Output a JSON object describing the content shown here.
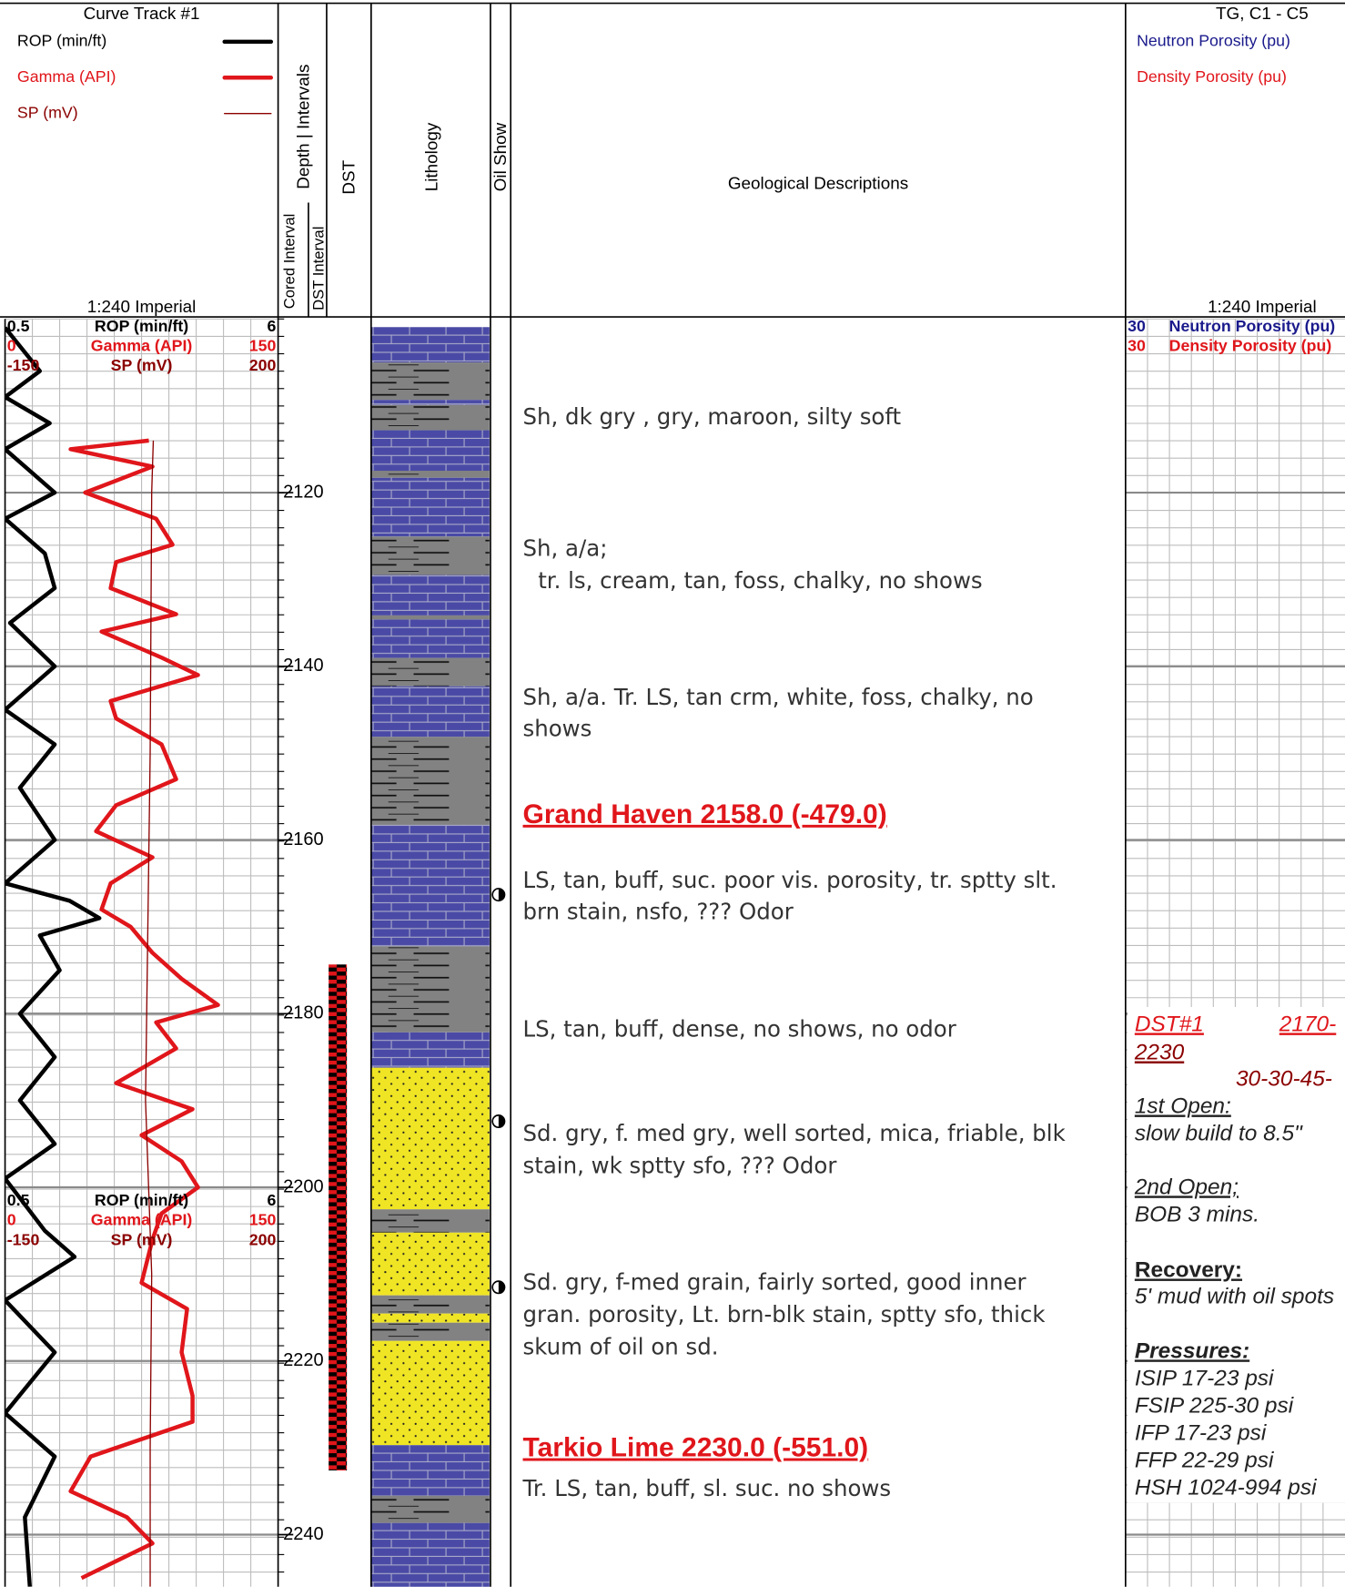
{
  "header": {
    "curve_track_title": "Curve Track #1",
    "scale_label": "1:240 Imperial",
    "columns": {
      "depth": "Depth | Intervals",
      "cored": "Cored Interval",
      "dst_interval": "DST Interval",
      "dst": "DST",
      "lithology": "Lithology",
      "oil_show": "Oil Show",
      "descriptions": "Geological Descriptions"
    }
  },
  "right_track": {
    "title": "TG, C1 - C5",
    "scale_label": "1:240 Imperial",
    "curves": [
      {
        "name": "Neutron Porosity (pu)",
        "color": "#1a1a8c",
        "min": 30
      },
      {
        "name": "Density Porosity (pu)",
        "color": "#e0161b",
        "min": 30
      }
    ]
  },
  "descriptions": [
    {
      "lines": [
        "Sh, dk gry , gry, maroon, silty soft"
      ]
    },
    {
      "lines": [
        "Sh, a/a;",
        "tr. ls, cream, tan, foss, chalky, no shows"
      ]
    },
    {
      "lines": [
        "Sh, a/a. Tr. LS, tan crm, white, foss, chalky, no",
        "shows"
      ]
    },
    {
      "lines": [
        "LS, tan, buff, suc. poor vis. porosity, tr. sptty slt.",
        "brn stain, nsfo, ??? Odor"
      ]
    },
    {
      "lines": [
        "LS, tan, buff, dense, no shows, no odor"
      ]
    },
    {
      "lines": [
        "Sd. gry, f. med gry, well sorted, mica, friable, blk",
        "stain, wk sptty sfo, ??? Odor"
      ]
    },
    {
      "lines": [
        "Sd. gry, f-med grain, fairly sorted, good inner",
        "gran. porosity, Lt. brn-blk stain, sptty sfo, thick",
        "skum of oil on sd."
      ]
    },
    {
      "lines": [
        "Tr. LS, tan, buff, sl.  suc. no shows"
      ]
    }
  ],
  "formation_tops": [
    "Grand Haven  2158.0 (-479.0)",
    "Tarkio Lime 2230.0 (-551.0)"
  ],
  "dst_report": [
    "DST#1",
    "2170-",
    "2230",
    "30-30-45-",
    "1st Open:",
    "slow build to 8.5\"",
    "2nd Open;",
    "BOB 3 mins.",
    "Recovery:",
    "5' mud with oil spots",
    "Pressures:",
    "ISIP 17-23 psi",
    "FSIP 225-30 psi",
    "IFP 17-23 psi",
    "FFP 22-29 psi",
    "HSH 1024-994 psi"
  ],
  "chart_data": {
    "type": "line",
    "ylim": [
      2100,
      2246
    ],
    "yticks": [
      2120,
      2140,
      2160,
      2180,
      2200,
      2220,
      2240
    ],
    "grid": true,
    "series": [
      {
        "name": "ROP (min/ft)",
        "color": "#000000",
        "xlim": [
          0.5,
          6
        ],
        "x": [
          2101,
          2106,
          2109,
          2112,
          2115,
          2120,
          2123,
          2127,
          2131,
          2135,
          2140,
          2145,
          2149,
          2154,
          2160,
          2165,
          2167,
          2169,
          2171,
          2175,
          2180,
          2185,
          2190,
          2195,
          2199,
          2205,
          2208,
          2213,
          2219,
          2226,
          2231,
          2238,
          2246
        ],
        "values": [
          0.5,
          1.2,
          0.5,
          1.4,
          0.5,
          1.5,
          0.5,
          1.3,
          1.5,
          0.6,
          1.5,
          0.5,
          1.5,
          0.8,
          1.5,
          0.5,
          1.8,
          2.4,
          1.2,
          1.6,
          0.8,
          1.5,
          0.8,
          1.5,
          0.5,
          1.3,
          1.9,
          0.5,
          1.5,
          0.5,
          1.5,
          0.9,
          1.0
        ]
      },
      {
        "name": "Gamma (API)",
        "color": "#e0161b",
        "xlim": [
          0,
          150
        ],
        "x": [
          2114,
          2115,
          2117,
          2120,
          2123,
          2126,
          2128,
          2131,
          2134,
          2136,
          2139,
          2141,
          2144,
          2146,
          2149,
          2153,
          2156,
          2159,
          2162,
          2165,
          2168,
          2170,
          2173,
          2176,
          2179,
          2181,
          2184,
          2188,
          2191,
          2194,
          2197,
          2200,
          2203,
          2206,
          2211,
          2214,
          2219,
          2224,
          2227,
          2231,
          2235,
          2238,
          2241,
          2245
        ],
        "values": [
          79,
          36,
          81,
          44,
          83,
          92,
          61,
          58,
          94,
          53,
          86,
          106,
          58,
          61,
          86,
          94,
          61,
          50,
          81,
          58,
          53,
          69,
          81,
          97,
          117,
          83,
          94,
          61,
          103,
          75,
          97,
          106,
          86,
          81,
          75,
          100,
          97,
          103,
          103,
          47,
          36,
          67,
          81,
          42
        ]
      },
      {
        "name": "SP (mV)",
        "color": "#8b0000",
        "xlim": [
          -150,
          200
        ],
        "x": [
          2114,
          2120,
          2150,
          2170,
          2190,
          2210,
          2230,
          2246
        ],
        "values": [
          40,
          38,
          36,
          33,
          30,
          38,
          36,
          36
        ]
      }
    ]
  }
}
